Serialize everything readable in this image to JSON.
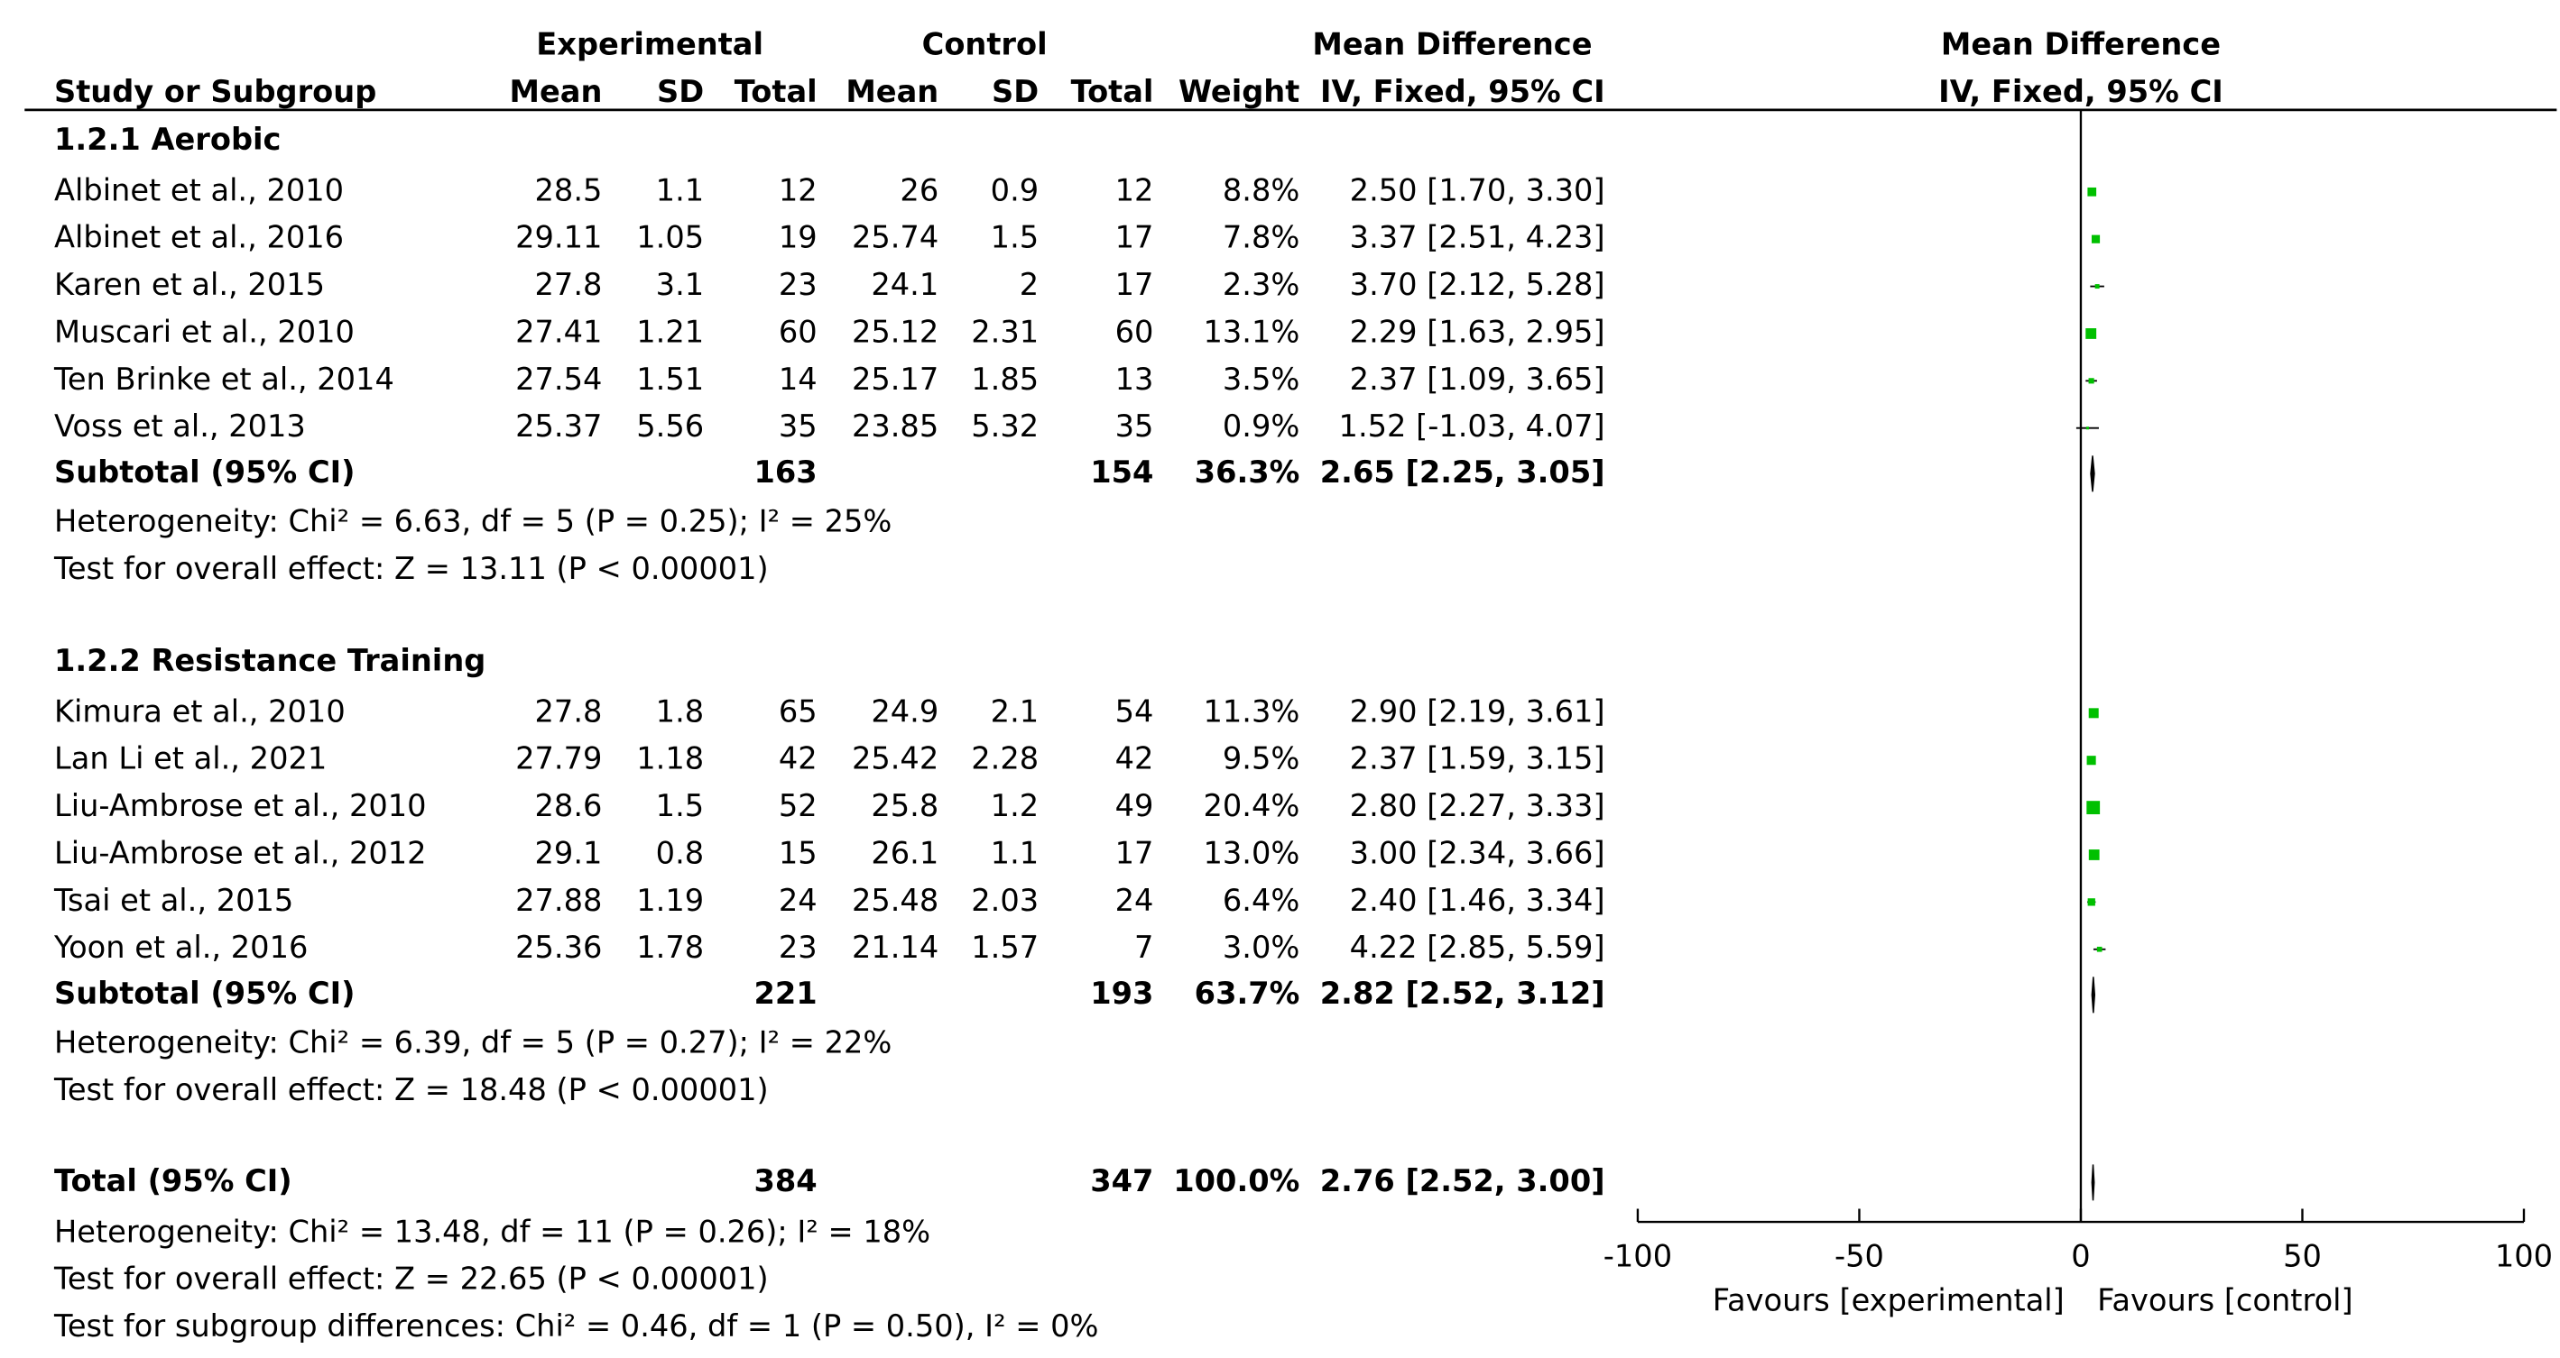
{
  "chart_data": {
    "type": "forest",
    "header": {
      "experimental": "Experimental",
      "control": "Control",
      "effect": "Mean Difference",
      "study": "Study or Subgroup",
      "exp_mean": "Mean",
      "exp_sd": "SD",
      "exp_total": "Total",
      "ctl_mean": "Mean",
      "ctl_sd": "SD",
      "ctl_total": "Total",
      "weight": "Weight",
      "effect_method": "IV, Fixed, 95% CI",
      "plot_title": "Mean Difference",
      "plot_method": "IV, Fixed, 95% CI"
    },
    "groups": [
      {
        "title": "1.2.1 Aerobic",
        "studies": [
          {
            "name": "Albinet et al., 2010",
            "exp_mean": 28.5,
            "exp_sd": 1.1,
            "exp_total": 12,
            "ctl_mean": 26,
            "ctl_sd": 0.9,
            "ctl_total": 12,
            "weight": 8.8,
            "weight_label": "8.8%",
            "md": 2.5,
            "ci_low": 1.7,
            "ci_high": 3.3,
            "effect_label": "2.50 [1.70, 3.30]"
          },
          {
            "name": "Albinet et al., 2016",
            "exp_mean": 29.11,
            "exp_sd": 1.05,
            "exp_total": 19,
            "ctl_mean": 25.74,
            "ctl_sd": 1.5,
            "ctl_total": 17,
            "weight": 7.8,
            "weight_label": "7.8%",
            "md": 3.37,
            "ci_low": 2.51,
            "ci_high": 4.23,
            "effect_label": "3.37 [2.51, 4.23]"
          },
          {
            "name": "Karen et al., 2015",
            "exp_mean": 27.8,
            "exp_sd": 3.1,
            "exp_total": 23,
            "ctl_mean": 24.1,
            "ctl_sd": 2,
            "ctl_total": 17,
            "weight": 2.3,
            "weight_label": "2.3%",
            "md": 3.7,
            "ci_low": 2.12,
            "ci_high": 5.28,
            "effect_label": "3.70 [2.12, 5.28]"
          },
          {
            "name": "Muscari et al., 2010",
            "exp_mean": 27.41,
            "exp_sd": 1.21,
            "exp_total": 60,
            "ctl_mean": 25.12,
            "ctl_sd": 2.31,
            "ctl_total": 60,
            "weight": 13.1,
            "weight_label": "13.1%",
            "md": 2.29,
            "ci_low": 1.63,
            "ci_high": 2.95,
            "effect_label": "2.29 [1.63, 2.95]"
          },
          {
            "name": "Ten Brinke et al., 2014",
            "exp_mean": 27.54,
            "exp_sd": 1.51,
            "exp_total": 14,
            "ctl_mean": 25.17,
            "ctl_sd": 1.85,
            "ctl_total": 13,
            "weight": 3.5,
            "weight_label": "3.5%",
            "md": 2.37,
            "ci_low": 1.09,
            "ci_high": 3.65,
            "effect_label": "2.37 [1.09, 3.65]"
          },
          {
            "name": "Voss et al., 2013",
            "exp_mean": 25.37,
            "exp_sd": 5.56,
            "exp_total": 35,
            "ctl_mean": 23.85,
            "ctl_sd": 5.32,
            "ctl_total": 35,
            "weight": 0.9,
            "weight_label": "0.9%",
            "md": 1.52,
            "ci_low": -1.03,
            "ci_high": 4.07,
            "effect_label": "1.52 [-1.03, 4.07]"
          }
        ],
        "subtotal": {
          "name": "Subtotal (95% CI)",
          "exp_total": 163,
          "ctl_total": 154,
          "weight_label": "36.3%",
          "md": 2.65,
          "ci_low": 2.25,
          "ci_high": 3.05,
          "effect_label": "2.65 [2.25, 3.05]"
        },
        "notes": [
          "Heterogeneity: Chi² = 6.63, df = 5 (P = 0.25); I² = 25%",
          "Test for overall effect: Z = 13.11 (P < 0.00001)"
        ]
      },
      {
        "title": "1.2.2 Resistance Training",
        "studies": [
          {
            "name": "Kimura et al., 2010",
            "exp_mean": 27.8,
            "exp_sd": 1.8,
            "exp_total": 65,
            "ctl_mean": 24.9,
            "ctl_sd": 2.1,
            "ctl_total": 54,
            "weight": 11.3,
            "weight_label": "11.3%",
            "md": 2.9,
            "ci_low": 2.19,
            "ci_high": 3.61,
            "effect_label": "2.90 [2.19, 3.61]"
          },
          {
            "name": "Lan Li et al., 2021",
            "exp_mean": 27.79,
            "exp_sd": 1.18,
            "exp_total": 42,
            "ctl_mean": 25.42,
            "ctl_sd": 2.28,
            "ctl_total": 42,
            "weight": 9.5,
            "weight_label": "9.5%",
            "md": 2.37,
            "ci_low": 1.59,
            "ci_high": 3.15,
            "effect_label": "2.37 [1.59, 3.15]"
          },
          {
            "name": "Liu-Ambrose et al., 2010",
            "exp_mean": 28.6,
            "exp_sd": 1.5,
            "exp_total": 52,
            "ctl_mean": 25.8,
            "ctl_sd": 1.2,
            "ctl_total": 49,
            "weight": 20.4,
            "weight_label": "20.4%",
            "md": 2.8,
            "ci_low": 2.27,
            "ci_high": 3.33,
            "effect_label": "2.80 [2.27, 3.33]"
          },
          {
            "name": "Liu-Ambrose et al., 2012",
            "exp_mean": 29.1,
            "exp_sd": 0.8,
            "exp_total": 15,
            "ctl_mean": 26.1,
            "ctl_sd": 1.1,
            "ctl_total": 17,
            "weight": 13.0,
            "weight_label": "13.0%",
            "md": 3.0,
            "ci_low": 2.34,
            "ci_high": 3.66,
            "effect_label": "3.00 [2.34, 3.66]"
          },
          {
            "name": "Tsai et al., 2015",
            "exp_mean": 27.88,
            "exp_sd": 1.19,
            "exp_total": 24,
            "ctl_mean": 25.48,
            "ctl_sd": 2.03,
            "ctl_total": 24,
            "weight": 6.4,
            "weight_label": "6.4%",
            "md": 2.4,
            "ci_low": 1.46,
            "ci_high": 3.34,
            "effect_label": "2.40 [1.46, 3.34]"
          },
          {
            "name": "Yoon et al., 2016",
            "exp_mean": 25.36,
            "exp_sd": 1.78,
            "exp_total": 23,
            "ctl_mean": 21.14,
            "ctl_sd": 1.57,
            "ctl_total": 7,
            "weight": 3.0,
            "weight_label": "3.0%",
            "md": 4.22,
            "ci_low": 2.85,
            "ci_high": 5.59,
            "effect_label": "4.22 [2.85, 5.59]"
          }
        ],
        "subtotal": {
          "name": "Subtotal (95% CI)",
          "exp_total": 221,
          "ctl_total": 193,
          "weight_label": "63.7%",
          "md": 2.82,
          "ci_low": 2.52,
          "ci_high": 3.12,
          "effect_label": "2.82 [2.52, 3.12]"
        },
        "notes": [
          "Heterogeneity: Chi² = 6.39, df = 5 (P = 0.27); I² = 22%",
          "Test for overall effect: Z = 18.48 (P < 0.00001)"
        ]
      }
    ],
    "total": {
      "name": "Total (95% CI)",
      "exp_total": 384,
      "ctl_total": 347,
      "weight_label": "100.0%",
      "md": 2.76,
      "ci_low": 2.52,
      "ci_high": 3.0,
      "effect_label": "2.76 [2.52, 3.00]"
    },
    "total_notes": [
      "Heterogeneity: Chi² = 13.48, df = 11 (P = 0.26); I² = 18%",
      "Test for overall effect: Z = 22.65 (P < 0.00001)",
      "Test for subgroup differences: Chi² = 0.46, df = 1 (P = 0.50), I² = 0%"
    ],
    "xlim": [
      -100,
      100
    ],
    "xticks": [
      -100,
      -50,
      0,
      50,
      100
    ],
    "favours_left": "Favours [experimental]",
    "favours_right": "Favours [control]",
    "marker_color": "#00c000"
  }
}
